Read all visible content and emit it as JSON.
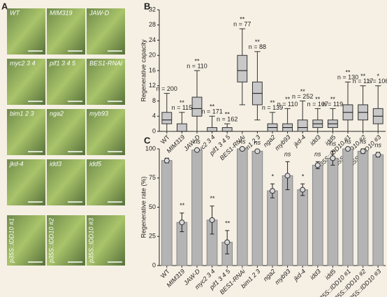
{
  "photo_panel": {
    "panel_label": "A",
    "tiles": [
      "WT",
      "MIM319",
      "JAW-D",
      "myc2 3 4",
      "pif1 3 4 5",
      "BES1-RNAi",
      "bim1 2 3",
      "nga2",
      "myb93",
      "jkd-4",
      "idd3",
      "idd5",
      "p35S::IDD10 #1",
      "p35S::IDD10 #2",
      "p35S::IDD10 #3"
    ]
  },
  "chart_data": [
    {
      "type": "box",
      "panel_label": "B",
      "ylabel": "Regenerative capacity",
      "categories": [
        "WT",
        "MIM319",
        "JAW-D",
        "myc2 3 4",
        "pif1 3 4 5",
        "BES1-RNAi",
        "bim1 2 3",
        "nga2",
        "myb93",
        "jkd-4",
        "idd3",
        "idd5",
        "p35S::IDD10 #1",
        "p35S::IDD10 #2",
        "p35S::IDD10 #3"
      ],
      "min": [
        0,
        0,
        0,
        0,
        0,
        7,
        3,
        0,
        0,
        0,
        0,
        0,
        0,
        0,
        0
      ],
      "q1": [
        2,
        0,
        4,
        0,
        0,
        13,
        7,
        0,
        0,
        0,
        1,
        1,
        3,
        3,
        2
      ],
      "median": [
        3,
        0,
        6,
        0,
        0,
        16,
        10,
        1,
        1,
        1,
        2,
        2,
        5,
        5,
        4
      ],
      "q3": [
        5,
        2,
        9,
        1,
        1,
        20,
        13,
        2,
        2,
        3,
        3,
        3,
        7,
        7,
        6
      ],
      "max": [
        10,
        5,
        16,
        4,
        2,
        27,
        21,
        5,
        6,
        8,
        6,
        6,
        13,
        12,
        12
      ],
      "n_labels": [
        "n = 200",
        "n = 115",
        "n = 110",
        "n = 171",
        "n = 162",
        "n = 77",
        "n = 88",
        "n = 139",
        "n = 110",
        "n = 252",
        "n = 107",
        "n = 119",
        "n = 130",
        "n = 117",
        "n = 106"
      ],
      "significance": [
        null,
        "**",
        "**",
        "**",
        "**",
        "**",
        "**",
        "**",
        "**",
        "**",
        "**",
        "**",
        "**",
        "**",
        "*"
      ],
      "color": "#c8c8c8",
      "ylim": [
        0,
        32
      ],
      "yticks": [
        0,
        4,
        8,
        12,
        16,
        20,
        24,
        28,
        32
      ]
    },
    {
      "type": "bar",
      "panel_label": "C",
      "ylabel": "Regenerative rate (%)",
      "categories": [
        "WT",
        "MIM319",
        "JAW-D",
        "myc2 3 4",
        "pif1 3 4 5",
        "BES1-RNAi",
        "bim1 2 3",
        "nga2",
        "myb93",
        "jkd-4",
        "idd3",
        "idd5",
        "p35S::IDD10 #1",
        "p35S::IDD10 #2",
        "p35S::IDD10 #3"
      ],
      "values": [
        90,
        37,
        99,
        39,
        20,
        100,
        98,
        64,
        77,
        65,
        86,
        92,
        100,
        98,
        95
      ],
      "errors": [
        2,
        8,
        1,
        12,
        10,
        0,
        1,
        6,
        12,
        5,
        3,
        6,
        0,
        2,
        2
      ],
      "significance": [
        null,
        "**",
        "ns",
        "**",
        "**",
        "ns",
        "ns",
        "*",
        "ns",
        "*",
        "ns",
        "ns",
        "ns",
        "ns",
        "ns"
      ],
      "color": "#b4b4b4",
      "ylim": [
        0,
        100
      ],
      "yticks": [
        0,
        25,
        50,
        75,
        100
      ]
    }
  ]
}
